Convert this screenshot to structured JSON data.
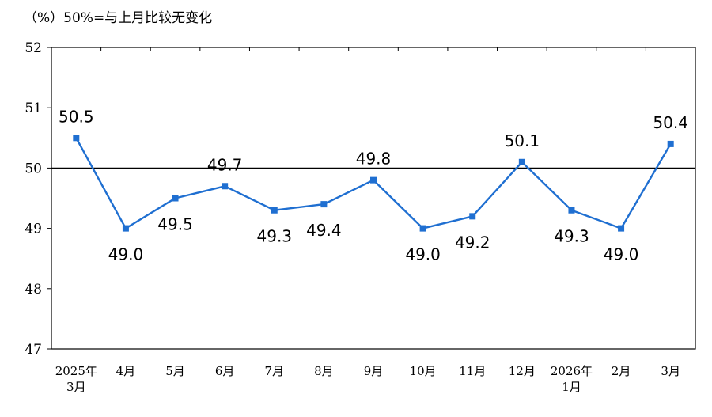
{
  "header_note": "（%）50%=与上月比较无变化",
  "chart_data": {
    "type": "line",
    "title": "",
    "xlabel": "",
    "ylabel": "",
    "categories": [
      [
        "2025年",
        "3月"
      ],
      [
        "4月"
      ],
      [
        "5月"
      ],
      [
        "6月"
      ],
      [
        "7月"
      ],
      [
        "8月"
      ],
      [
        "9月"
      ],
      [
        "10月"
      ],
      [
        "11月"
      ],
      [
        "12月"
      ],
      [
        "2026年",
        "1月"
      ],
      [
        "2月"
      ],
      [
        "3月"
      ]
    ],
    "series": [
      {
        "values": [
          50.5,
          49.0,
          49.5,
          49.7,
          49.3,
          49.4,
          49.8,
          49.0,
          49.2,
          50.1,
          49.3,
          49.0,
          50.4
        ]
      }
    ],
    "data_labels": [
      "50.5",
      "49.0",
      "49.5",
      "49.7",
      "49.3",
      "49.4",
      "49.8",
      "49.0",
      "49.2",
      "50.1",
      "49.3",
      "49.0",
      "50.4"
    ],
    "ylim": [
      47,
      52
    ],
    "yticks": [
      47,
      48,
      49,
      50,
      51,
      52
    ],
    "reference_line": 50,
    "grid": false,
    "line_color": "#1F6FD1",
    "marker": "square"
  }
}
